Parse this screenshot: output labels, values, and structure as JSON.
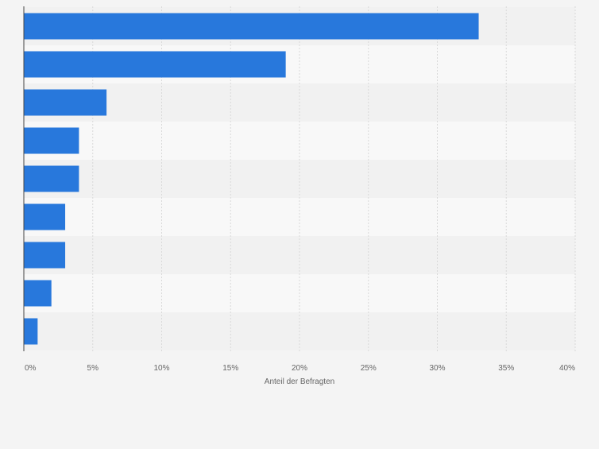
{
  "chart_data": {
    "type": "bar",
    "orientation": "horizontal",
    "categories": [
      "",
      "",
      "",
      "",
      "",
      "",
      "",
      "",
      ""
    ],
    "values": [
      33,
      19,
      6,
      4,
      4,
      3,
      3,
      2,
      1
    ],
    "xlabel": "Anteil der Befragten",
    "ylabel": "",
    "xlim": [
      0,
      40
    ],
    "x_ticks": [
      0,
      5,
      10,
      15,
      20,
      25,
      30,
      35,
      40
    ],
    "x_tick_labels": [
      "0%",
      "5%",
      "10%",
      "15%",
      "20%",
      "25%",
      "30%",
      "35%",
      "40%"
    ],
    "grid": true,
    "legend": "none",
    "colors": {
      "bar": "#2878dc",
      "band_light": "#f8f8f8",
      "band_dark": "#f1f1f1",
      "grid": "#d9d9d9",
      "axis": "#444444",
      "tick_text": "#666666",
      "page_bg": "#f4f4f4"
    }
  }
}
